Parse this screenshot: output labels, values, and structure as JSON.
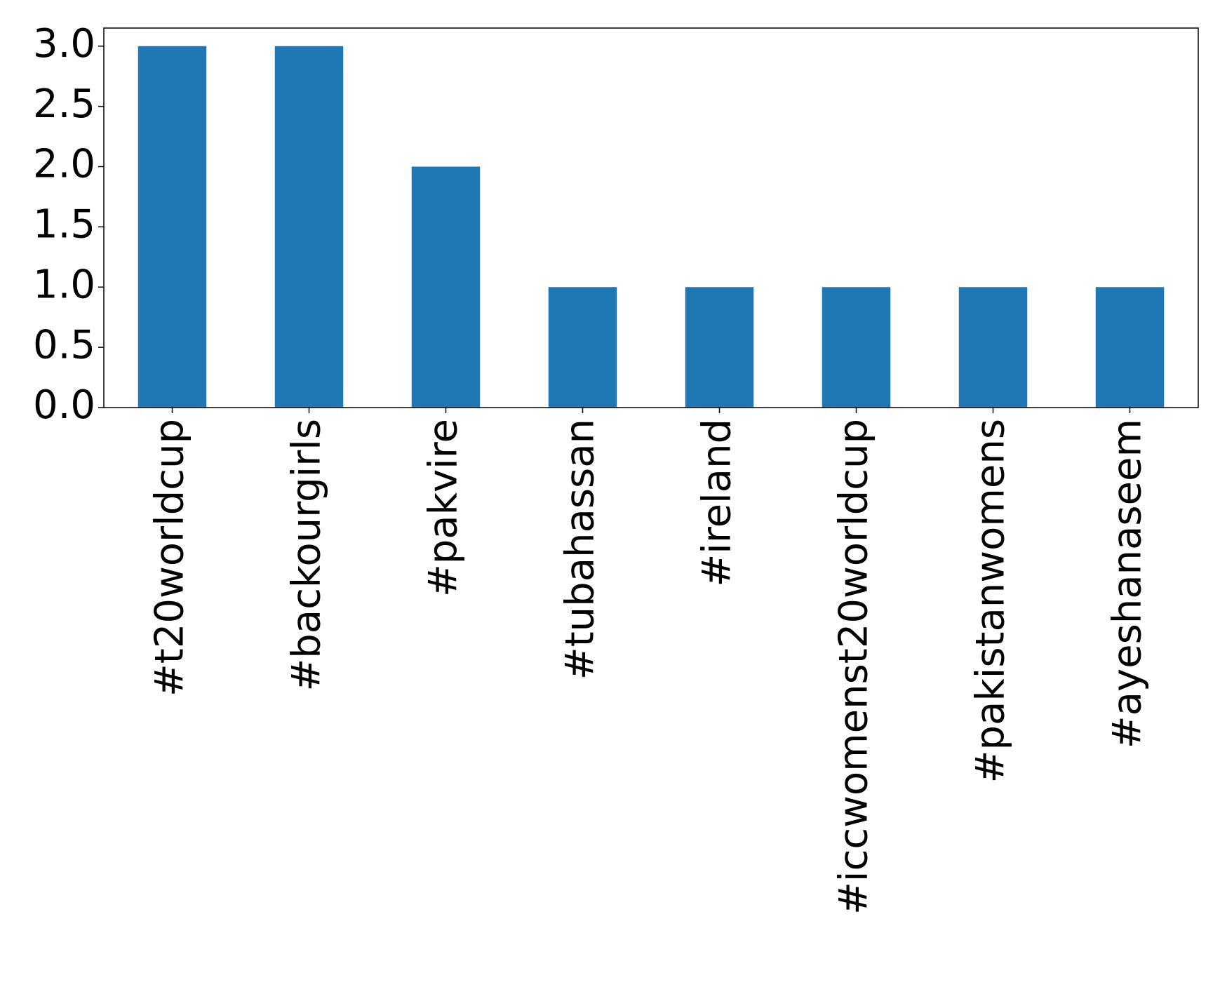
{
  "chart_data": {
    "type": "bar",
    "categories": [
      "#t20worldcup",
      "#backourgirls",
      "#pakvire",
      "#tubahassan",
      "#ireland",
      "#iccwomenst20worldcup",
      "#pakistanwomens",
      "#ayeshanaseem"
    ],
    "values": [
      3,
      3,
      2,
      1,
      1,
      1,
      1,
      1
    ],
    "color": "#1f77b4",
    "ylim": [
      0,
      3.15
    ],
    "yticks": [
      {
        "value": 0,
        "label": "0.0"
      },
      {
        "value": 0.5,
        "label": "0.5"
      },
      {
        "value": 1,
        "label": "1.0"
      },
      {
        "value": 1.5,
        "label": "1.5"
      },
      {
        "value": 2,
        "label": "2.0"
      },
      {
        "value": 2.5,
        "label": "2.5"
      },
      {
        "value": 3,
        "label": "3.0"
      }
    ],
    "grid": false
  }
}
